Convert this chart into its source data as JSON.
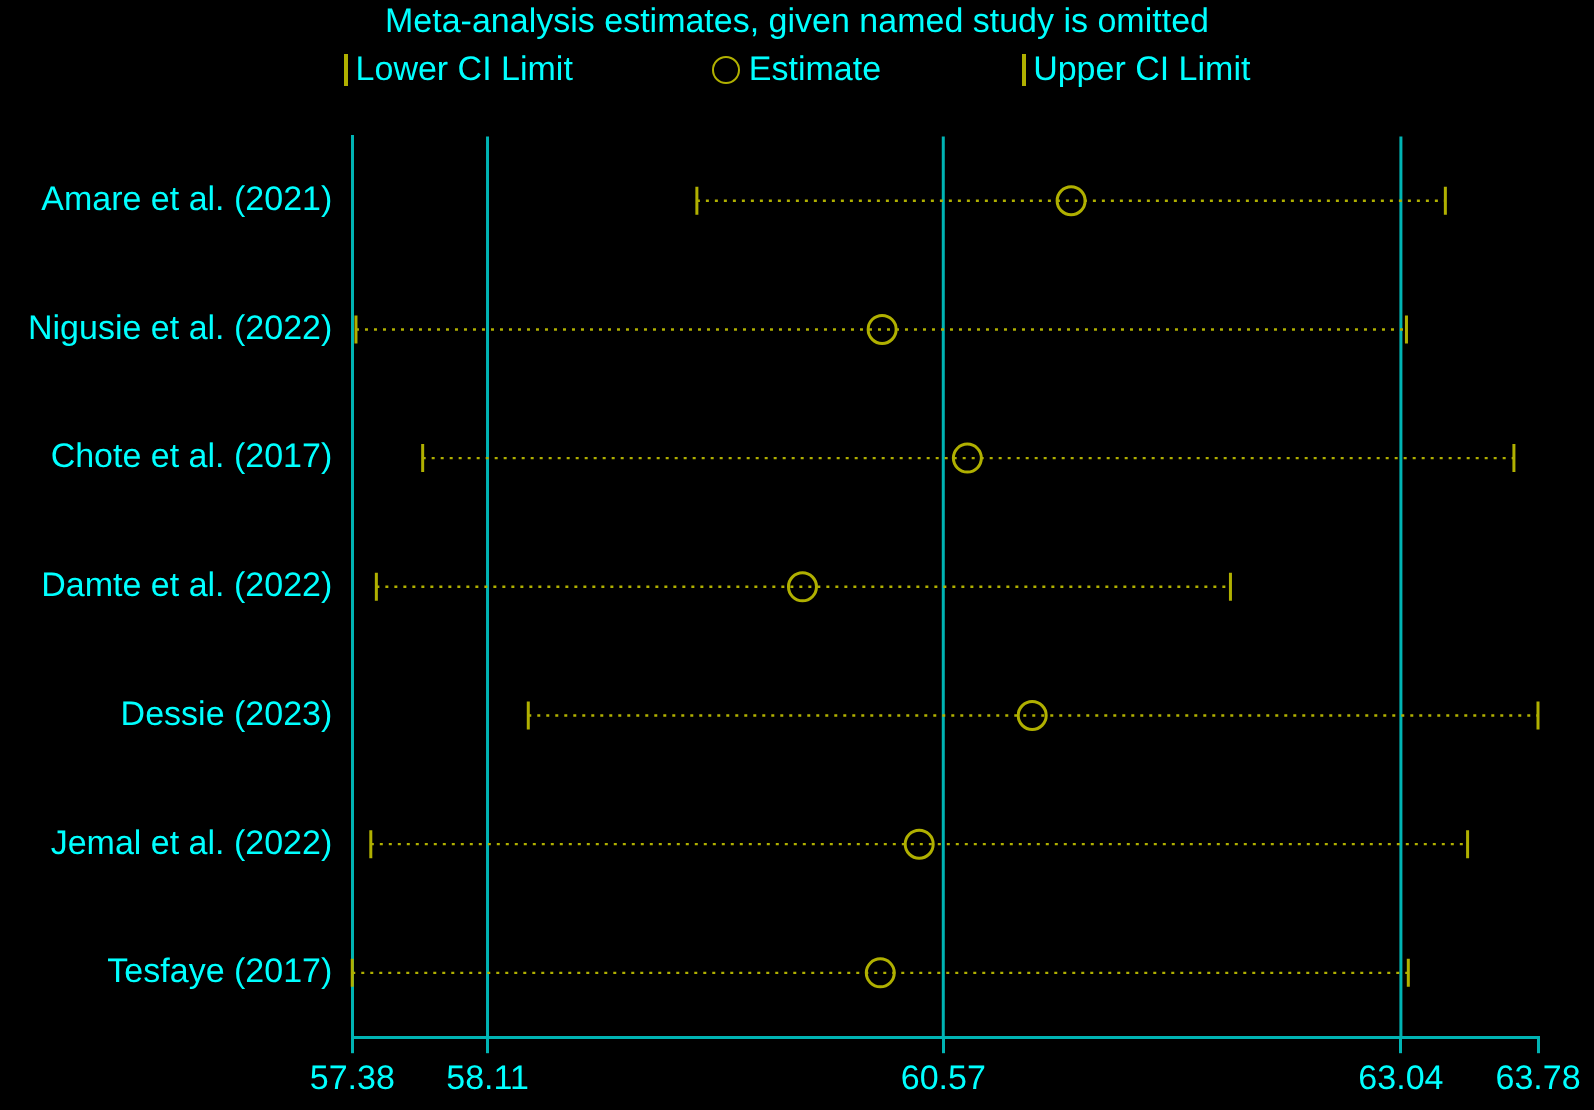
{
  "chart_data": {
    "type": "scatter",
    "orientation": "horizontal",
    "title": "Meta-analysis estimates, given named study is omitted",
    "categories": [
      "Amare et al. (2021)",
      "Nigusie et al. (2022)",
      "Chote et al. (2017)",
      "Damte et al. (2022)",
      "Dessie (2023)",
      "Jemal et al. (2022)",
      "Tesfaye (2017)"
    ],
    "series": [
      {
        "name": "Estimate",
        "color": "#b0b000",
        "marker": "circle",
        "values": [
          61.26,
          60.24,
          60.7,
          59.81,
          61.05,
          60.44,
          60.23
        ],
        "errors": [
          [
            59.24,
            63.28
          ],
          [
            57.4,
            63.07
          ],
          [
            57.76,
            63.65
          ],
          [
            57.51,
            62.12
          ],
          [
            58.33,
            63.78
          ],
          [
            57.48,
            63.4
          ],
          [
            57.38,
            63.08
          ]
        ]
      }
    ],
    "annotations": [
      "Lower CI Limit",
      "Upper CI Limit"
    ],
    "xlim": [
      57.38,
      63.78
    ],
    "xticks": [
      57.38,
      58.11,
      60.57,
      63.04,
      63.78
    ],
    "ref_lines": [
      {
        "axis": "x",
        "value": 58.11,
        "color": "#00b4b4"
      },
      {
        "axis": "x",
        "value": 60.57,
        "color": "#00b4b4"
      },
      {
        "axis": "x",
        "value": 63.04,
        "color": "#00b4b4"
      }
    ],
    "grid": false,
    "legend": "top"
  }
}
